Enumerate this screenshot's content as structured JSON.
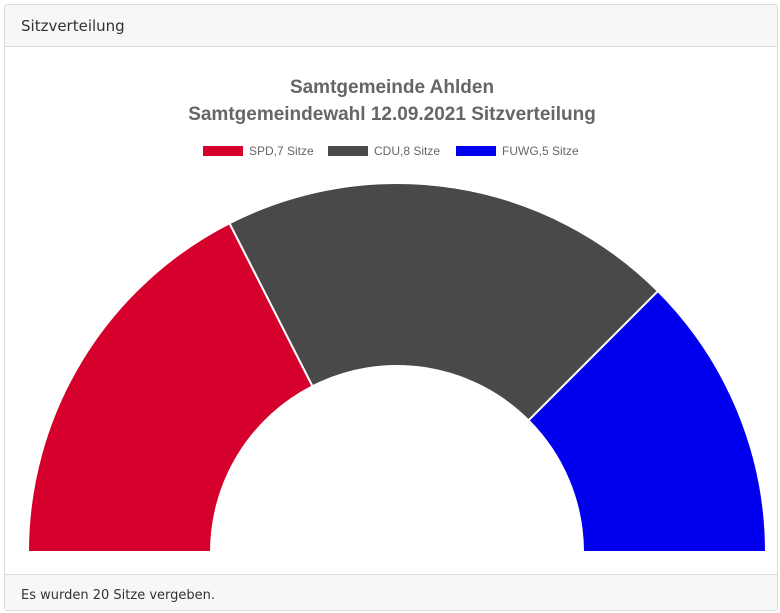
{
  "card": {
    "header": "Sitzverteilung",
    "footer": "Es wurden 20 Sitze vergeben."
  },
  "chart_data": {
    "type": "pie",
    "variant": "semicircle-doughnut",
    "title": [
      "Samtgemeinde Ahlden",
      "Samtgemeindewahl 12.09.2021 Sitzverteilung"
    ],
    "legend_position": "top",
    "categories": [
      "SPD",
      "CDU",
      "FUWG"
    ],
    "values": [
      7,
      8,
      5
    ],
    "legend_labels": [
      "SPD,7 Sitze",
      "CDU,8 Sitze",
      "FUWG,5 Sitze"
    ],
    "colors": [
      "#d5002b",
      "#494949",
      "#0000ee"
    ],
    "total": 20
  }
}
